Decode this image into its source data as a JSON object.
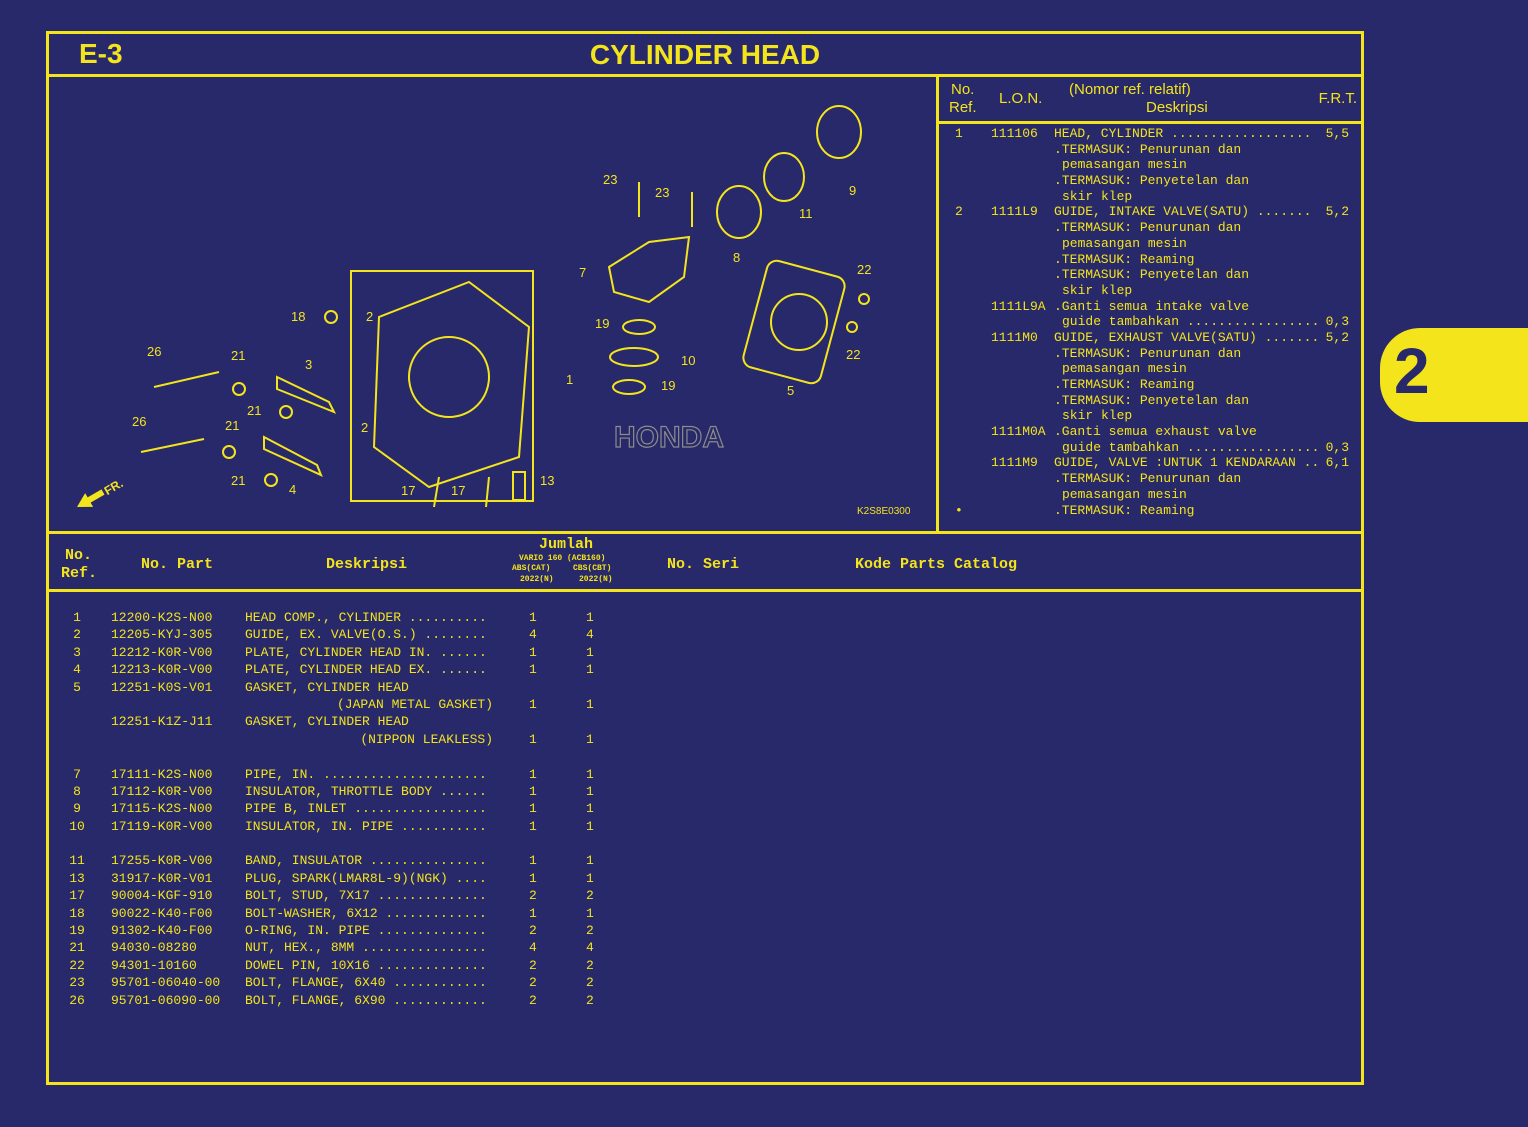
{
  "page": {
    "section_code": "E-3",
    "title": "CYLINDER HEAD",
    "side_tab": "2"
  },
  "colors": {
    "background": "#27296a",
    "foreground": "#f4e41c"
  },
  "diagram": {
    "drawing_code": "K2S8E0300",
    "front_label": "FR.",
    "watermark": "HONDA",
    "callouts": [
      "23",
      "23",
      "9",
      "11",
      "8",
      "7",
      "22",
      "22",
      "18",
      "2",
      "19",
      "10",
      "19",
      "1",
      "5",
      "26",
      "21",
      "3",
      "21",
      "26",
      "21",
      "2",
      "21",
      "4",
      "17",
      "17",
      "13"
    ]
  },
  "frt": {
    "headers": {
      "ref_1": "No.",
      "ref_2": "Ref.",
      "lon": "L.O.N.",
      "desc_1": "(Nomor ref. relatif)",
      "desc_2": "Deskripsi",
      "frt": "F.R.T."
    },
    "lines": [
      {
        "ref": "1",
        "lon": "111106",
        "desc": "HEAD, CYLINDER ..................",
        "frt": "5,5"
      },
      {
        "desc": ".TERMASUK: Penurunan dan"
      },
      {
        "desc": "pemasangan mesin",
        "indent": true
      },
      {
        "desc": ".TERMASUK: Penyetelan dan"
      },
      {
        "desc": "skir klep",
        "indent": true
      },
      {
        "ref": "2",
        "lon": "1111L9",
        "desc": "GUIDE, INTAKE VALVE(SATU) .......",
        "frt": "5,2"
      },
      {
        "desc": ".TERMASUK: Penurunan dan"
      },
      {
        "desc": "pemasangan mesin",
        "indent": true
      },
      {
        "desc": ".TERMASUK: Reaming"
      },
      {
        "desc": ".TERMASUK: Penyetelan dan"
      },
      {
        "desc": "skir klep",
        "indent": true
      },
      {
        "lon": "1111L9A",
        "desc": ".Ganti semua intake valve"
      },
      {
        "desc": "guide tambahkan .................",
        "frt": "0,3",
        "indent": true
      },
      {
        "lon": "1111M0",
        "desc": "GUIDE, EXHAUST VALVE(SATU) .......",
        "frt": "5,2"
      },
      {
        "desc": ".TERMASUK: Penurunan dan"
      },
      {
        "desc": "pemasangan mesin",
        "indent": true
      },
      {
        "desc": ".TERMASUK: Reaming"
      },
      {
        "desc": ".TERMASUK: Penyetelan dan"
      },
      {
        "desc": "skir klep",
        "indent": true
      },
      {
        "lon": "1111M0A",
        "desc": ".Ganti semua exhaust valve"
      },
      {
        "desc": "guide tambahkan .................",
        "frt": "0,3",
        "indent": true
      },
      {
        "lon": "1111M9",
        "desc": "GUIDE, VALVE :UNTUK 1 KENDARAAN ..",
        "frt": "6,1"
      },
      {
        "desc": ".TERMASUK: Penurunan dan"
      },
      {
        "desc": "pemasangan mesin",
        "indent": true
      },
      {
        "ref": "•",
        "desc": ".TERMASUK: Reaming"
      }
    ]
  },
  "table": {
    "headers": {
      "ref_1": "No.",
      "ref_2": "Ref.",
      "part": "No. Part",
      "desc": "Deskripsi",
      "qty": "Jumlah",
      "model": "VARIO 160 (ACB160)",
      "variant_1": "ABS(CAT)",
      "variant_2": "CBS(CBT)",
      "year_1": "2022(N)",
      "year_2": "2022(N)",
      "serial": "No. Seri",
      "catalog": "Kode Parts Catalog"
    },
    "groups": [
      [
        {
          "ref": "1",
          "part": "12200-K2S-N00",
          "desc": "HEAD COMP., CYLINDER ..........",
          "q1": "1",
          "q2": "1"
        },
        {
          "ref": "2",
          "part": "12205-KYJ-305",
          "desc": "GUIDE, EX. VALVE(O.S.) ........",
          "q1": "4",
          "q2": "4"
        },
        {
          "ref": "3",
          "part": "12212-K0R-V00",
          "desc": "PLATE, CYLINDER HEAD IN. ......",
          "q1": "1",
          "q2": "1"
        },
        {
          "ref": "4",
          "part": "12213-K0R-V00",
          "desc": "PLATE, CYLINDER HEAD EX. ......",
          "q1": "1",
          "q2": "1"
        },
        {
          "ref": "5",
          "part": "12251-K0S-V01",
          "desc": "GASKET, CYLINDER HEAD"
        },
        {
          "desc_sub": "(JAPAN METAL GASKET)",
          "q1": "1",
          "q2": "1"
        },
        {
          "part": "12251-K1Z-J11",
          "desc": "GASKET, CYLINDER HEAD"
        },
        {
          "desc_sub": "(NIPPON LEAKLESS)",
          "q1": "1",
          "q2": "1"
        }
      ],
      [
        {
          "ref": "7",
          "part": "17111-K2S-N00",
          "desc": "PIPE, IN. .....................",
          "q1": "1",
          "q2": "1"
        },
        {
          "ref": "8",
          "part": "17112-K0R-V00",
          "desc": "INSULATOR, THROTTLE BODY ......",
          "q1": "1",
          "q2": "1"
        },
        {
          "ref": "9",
          "part": "17115-K2S-N00",
          "desc": "PIPE B, INLET .................",
          "q1": "1",
          "q2": "1"
        },
        {
          "ref": "10",
          "part": "17119-K0R-V00",
          "desc": "INSULATOR, IN. PIPE ...........",
          "q1": "1",
          "q2": "1"
        }
      ],
      [
        {
          "ref": "11",
          "part": "17255-K0R-V00",
          "desc": "BAND, INSULATOR ...............",
          "q1": "1",
          "q2": "1"
        },
        {
          "ref": "13",
          "part": "31917-K0R-V01",
          "desc": "PLUG, SPARK(LMAR8L-9)(NGK) ....",
          "q1": "1",
          "q2": "1"
        },
        {
          "ref": "17",
          "part": "90004-KGF-910",
          "desc": "BOLT, STUD, 7X17 ..............",
          "q1": "2",
          "q2": "2"
        },
        {
          "ref": "18",
          "part": "90022-K40-F00",
          "desc": "BOLT-WASHER, 6X12 .............",
          "q1": "1",
          "q2": "1"
        },
        {
          "ref": "19",
          "part": "91302-K40-F00",
          "desc": "O-RING, IN. PIPE ..............",
          "q1": "2",
          "q2": "2"
        },
        {
          "ref": "21",
          "part": "94030-08280",
          "desc": "NUT, HEX., 8MM ................",
          "q1": "4",
          "q2": "4"
        },
        {
          "ref": "22",
          "part": "94301-10160",
          "desc": "DOWEL PIN, 10X16 ..............",
          "q1": "2",
          "q2": "2"
        },
        {
          "ref": "23",
          "part": "95701-06040-00",
          "desc": "BOLT, FLANGE, 6X40 ............",
          "q1": "2",
          "q2": "2"
        },
        {
          "ref": "26",
          "part": "95701-06090-00",
          "desc": "BOLT, FLANGE, 6X90 ............",
          "q1": "2",
          "q2": "2"
        }
      ]
    ]
  }
}
